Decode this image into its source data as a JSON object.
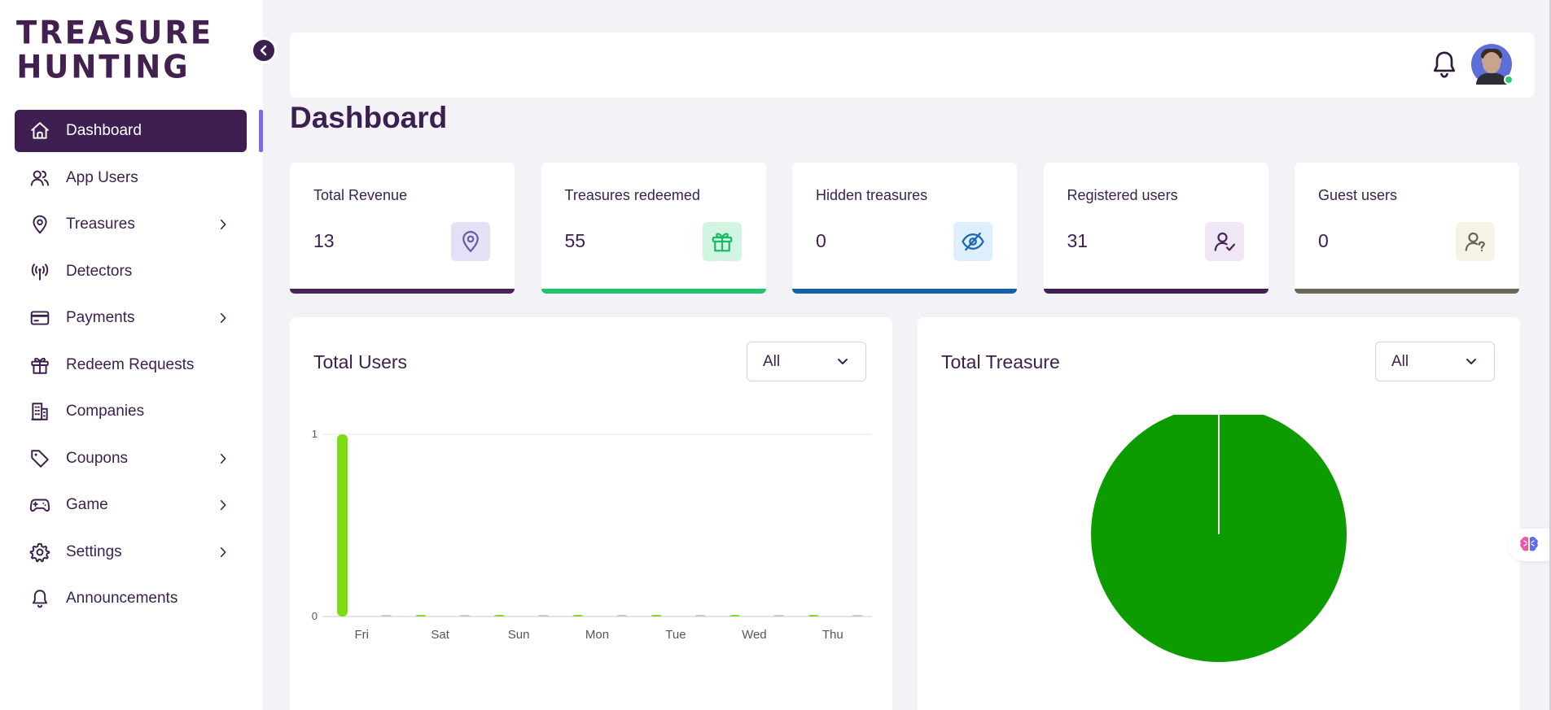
{
  "app": {
    "logo_line1": "TREASURE",
    "logo_line2": "HUNTING"
  },
  "sidebar": {
    "items": [
      {
        "label": "Dashboard",
        "icon": "home-icon",
        "active": true,
        "has_submenu": false
      },
      {
        "label": "App Users",
        "icon": "users-icon",
        "active": false,
        "has_submenu": false
      },
      {
        "label": "Treasures",
        "icon": "map-pin-icon",
        "active": false,
        "has_submenu": true
      },
      {
        "label": "Detectors",
        "icon": "antenna-icon",
        "active": false,
        "has_submenu": false
      },
      {
        "label": "Payments",
        "icon": "credit-card-icon",
        "active": false,
        "has_submenu": true
      },
      {
        "label": "Redeem Requests",
        "icon": "gift-icon",
        "active": false,
        "has_submenu": false
      },
      {
        "label": "Companies",
        "icon": "building-icon",
        "active": false,
        "has_submenu": false
      },
      {
        "label": "Coupons",
        "icon": "tag-icon",
        "active": false,
        "has_submenu": true
      },
      {
        "label": "Game",
        "icon": "gamepad-icon",
        "active": false,
        "has_submenu": true
      },
      {
        "label": "Settings",
        "icon": "gear-icon",
        "active": false,
        "has_submenu": true
      },
      {
        "label": "Announcements",
        "icon": "bell-icon",
        "active": false,
        "has_submenu": false
      }
    ]
  },
  "page": {
    "title": "Dashboard"
  },
  "stats": [
    {
      "label": "Total Revenue",
      "value": "13",
      "icon": "map-pin-icon",
      "icon_bg": "#e4e1f7",
      "icon_color": "#6b5aa8",
      "bar_color": "#4a2558"
    },
    {
      "label": "Treasures redeemed",
      "value": "55",
      "icon": "gift-icon",
      "icon_bg": "#d2f5e3",
      "icon_color": "#1fb866",
      "bar_color": "#21c36b"
    },
    {
      "label": "Hidden treasures",
      "value": "0",
      "icon": "eye-off-icon",
      "icon_bg": "#deeefa",
      "icon_color": "#1867b2",
      "bar_color": "#1760b0"
    },
    {
      "label": "Registered users",
      "value": "31",
      "icon": "user-check-icon",
      "icon_bg": "#efe6f6",
      "icon_color": "#4a2558",
      "bar_color": "#42204f"
    },
    {
      "label": "Guest users",
      "value": "0",
      "icon": "user-question-icon",
      "icon_bg": "#f6f4e6",
      "icon_color": "#6b6652",
      "bar_color": "#6b6652"
    }
  ],
  "panels": {
    "users": {
      "title": "Total Users",
      "filter": "All"
    },
    "treasure": {
      "title": "Total Treasure",
      "filter": "All"
    }
  },
  "chart_data": [
    {
      "type": "bar",
      "categories": [
        "Fri",
        "Sat",
        "Sun",
        "Mon",
        "Tue",
        "Wed",
        "Thu"
      ],
      "ylim": [
        0,
        1
      ],
      "y_ticks": [
        "0",
        "1"
      ],
      "series": [
        {
          "values": [
            1,
            0,
            0,
            0,
            0,
            0,
            0
          ],
          "color": "#7ddc13"
        },
        {
          "values": [
            0,
            0,
            0,
            0,
            0,
            0,
            0
          ],
          "color": "#c9c1d6"
        }
      ],
      "grid": true
    },
    {
      "type": "pie",
      "slices": [
        {
          "value": 100,
          "color": "#0c9c00"
        }
      ]
    }
  ]
}
